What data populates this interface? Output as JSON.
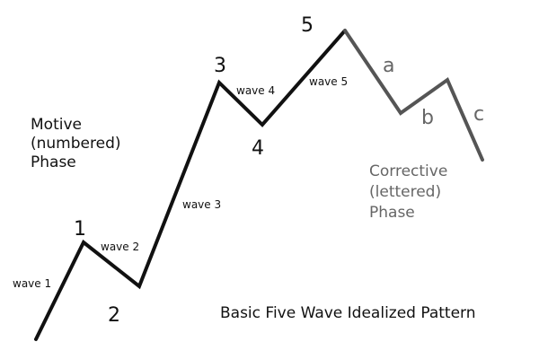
{
  "colors": {
    "motive": "#111111",
    "corrective": "#555555",
    "corrective_text": "#666666",
    "text": "#111111"
  },
  "title": "Basic Five Wave Idealized Pattern",
  "motive_phase": {
    "lines": [
      "Motive",
      "(numbered)",
      "Phase"
    ]
  },
  "corrective_phase": {
    "lines": [
      "Corrective",
      "(lettered)",
      "Phase"
    ]
  },
  "point_labels": {
    "p1": "1",
    "p2": "2",
    "p3": "3",
    "p4": "4",
    "p5": "5",
    "pa": "a",
    "pb": "b",
    "pc": "c"
  },
  "wave_labels": {
    "w1": "wave 1",
    "w2": "wave 2",
    "w3": "wave 3",
    "w4": "wave 4",
    "w5": "wave 5"
  }
}
